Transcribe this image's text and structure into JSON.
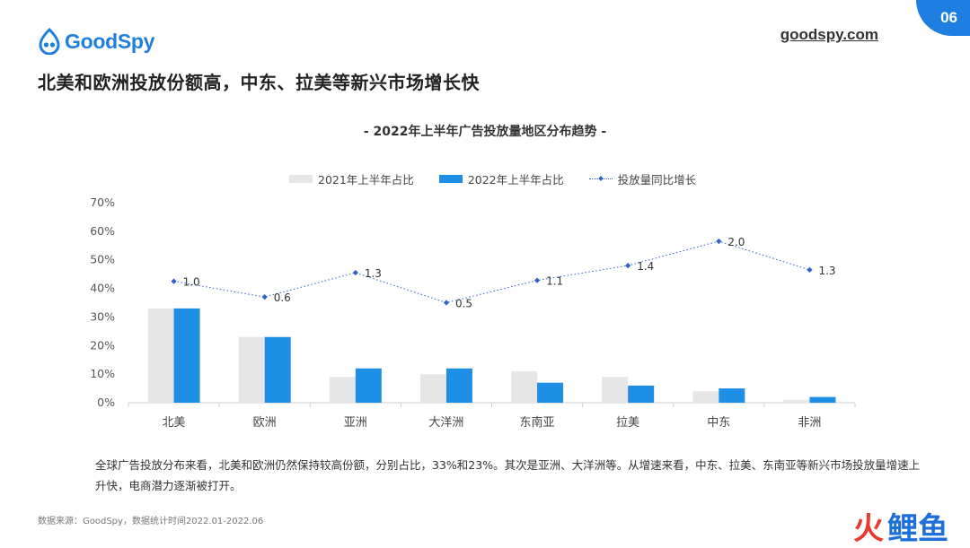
{
  "header": {
    "logo_text": "GoodSpy",
    "site": "goodspy.com",
    "page_number": "06",
    "headline": "北美和欧洲投放份额高，中东、拉美等新兴市场增长快"
  },
  "chart_data": {
    "type": "bar",
    "title": "- 2022年上半年广告投放量地区分布趋势 -",
    "categories": [
      "北美",
      "欧洲",
      "亚洲",
      "大洋洲",
      "东南亚",
      "拉美",
      "中东",
      "非洲"
    ],
    "series": [
      {
        "name": "2021年上半年占比",
        "kind": "bar",
        "color": "#e6e6e6",
        "values": [
          33,
          23,
          9,
          10,
          11,
          9,
          4,
          1
        ]
      },
      {
        "name": "2022年上半年占比",
        "kind": "bar",
        "color": "#1f8fe6",
        "values": [
          33,
          23,
          12,
          12,
          7,
          6,
          5,
          2
        ]
      },
      {
        "name": "投放量同比增长",
        "kind": "line",
        "style": "dotted",
        "color": "#2f63c8",
        "values": [
          42.5,
          37,
          45.5,
          35,
          42.8,
          48,
          56.5,
          46.5
        ],
        "labels": [
          "1.0",
          "0.6",
          "1.3",
          "0.5",
          "1.1",
          "1.4",
          "2.0",
          "1.3"
        ]
      }
    ],
    "y_ticks": [
      "0%",
      "10%",
      "20%",
      "30%",
      "40%",
      "50%",
      "60%",
      "70%"
    ],
    "ylim": [
      0,
      70
    ],
    "grid": false,
    "legend_position": "top"
  },
  "description": "全球广告投放分布来看，北美和欧洲仍然保持较高份额，分别占比，33%和23%。其次是亚洲、大洋洲等。从增速来看，中东、拉美、东南亚等新兴市场投放量增速上升快，电商潜力逐渐被打开。",
  "source": "数据来源：GoodSpy，数据统计时间2022.01-2022.06",
  "watermark": {
    "part1": "火",
    "part2": "鲤鱼"
  },
  "colors": {
    "brand": "#1f7fe0",
    "bar_2021": "#e6e6e6",
    "bar_2022": "#1f8fe6",
    "line": "#2f63c8"
  }
}
